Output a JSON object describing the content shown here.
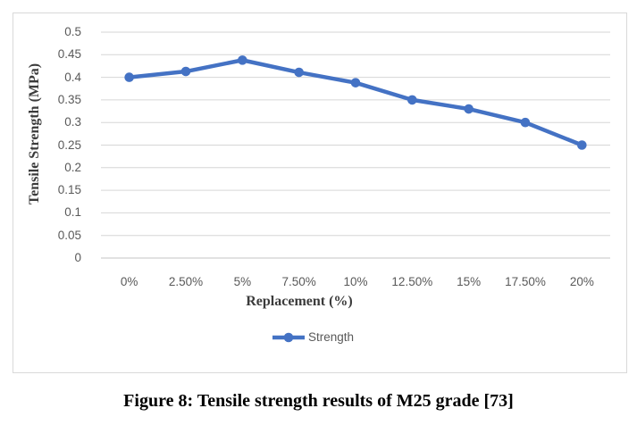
{
  "caption": "Figure 8: Tensile strength results of M25 grade [73]",
  "chart_data": {
    "type": "line",
    "title": "",
    "xlabel": "Replacement (%)",
    "ylabel": "Tensile Strength (MPa)",
    "categories": [
      "0%",
      "2.50%",
      "5%",
      "7.50%",
      "10%",
      "12.50%",
      "15%",
      "17.50%",
      "20%"
    ],
    "series": [
      {
        "name": "Strength",
        "values": [
          0.4,
          0.413,
          0.438,
          0.411,
          0.388,
          0.35,
          0.33,
          0.3,
          0.25
        ]
      }
    ],
    "ylim": [
      0,
      0.5
    ],
    "ytick_step": 0.05,
    "grid": "horizontal",
    "legend_position": "bottom",
    "marker": "circle",
    "colors": {
      "series": "#4472C4",
      "gridline": "#d6d6d6",
      "axis_line": "#c4c4c4",
      "tick_text": "#595959",
      "axis_title_text": "#3b3b3b",
      "caption_text": "#000000"
    }
  }
}
